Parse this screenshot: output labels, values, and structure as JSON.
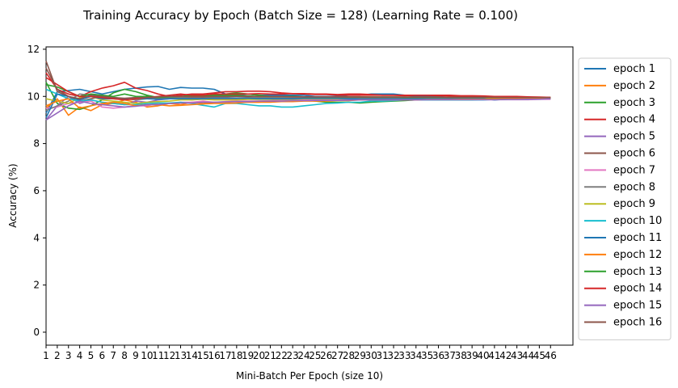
{
  "chart_data": {
    "type": "line",
    "title": "Training Accuracy by Epoch (Batch Size = 128) (Learning Rate = 0.100)",
    "xlabel": "Mini-Batch Per Epoch (size 10)",
    "ylabel": "Accuracy (%)",
    "xlim": [
      1,
      48
    ],
    "ylim": [
      -0.55,
      12.1
    ],
    "x_ticks": [
      1,
      2,
      3,
      4,
      5,
      6,
      7,
      8,
      9,
      10,
      11,
      12,
      13,
      14,
      15,
      16,
      17,
      18,
      19,
      20,
      21,
      22,
      23,
      24,
      25,
      26,
      27,
      28,
      29,
      30,
      31,
      32,
      33,
      34,
      35,
      36,
      37,
      38,
      39,
      40,
      41,
      42,
      43,
      44,
      45,
      46
    ],
    "y_ticks": [
      0,
      2,
      4,
      6,
      8,
      10,
      12
    ],
    "grid": false,
    "legend_position": "outside-right",
    "x": [
      1,
      2,
      3,
      4,
      5,
      6,
      7,
      8,
      9,
      10,
      11,
      12,
      13,
      14,
      15,
      16,
      17,
      18,
      19,
      20,
      21,
      22,
      23,
      24,
      25,
      26,
      27,
      28,
      29,
      30,
      31,
      32,
      33,
      34,
      35,
      36,
      37,
      38,
      39,
      40,
      41,
      42,
      43,
      44,
      45,
      46
    ],
    "series": [
      {
        "name": "epoch 1",
        "color": "#1f77b4",
        "values": [
          9.3,
          10.2,
          10.25,
          10.3,
          10.2,
          10.1,
          10.2,
          10.3,
          10.35,
          10.4,
          10.42,
          10.3,
          10.38,
          10.35,
          10.35,
          10.3,
          10.1,
          10.05,
          10.1,
          10.05,
          10.05,
          10.05,
          10.05,
          10.05,
          10.0,
          10.0,
          10.0,
          10.05,
          10.05,
          10.1,
          10.1,
          10.1,
          10.05,
          10.0,
          10.0,
          10.0,
          9.95,
          9.95,
          9.95,
          9.95,
          9.95,
          9.95,
          9.95,
          9.95,
          9.95,
          9.93
        ]
      },
      {
        "name": "epoch 2",
        "color": "#ff7f0e",
        "values": [
          9.5,
          9.9,
          9.2,
          9.55,
          9.4,
          9.65,
          9.7,
          9.85,
          9.75,
          9.55,
          9.6,
          9.7,
          9.65,
          9.75,
          9.7,
          9.75,
          9.75,
          9.78,
          9.75,
          9.75,
          9.8,
          9.8,
          9.8,
          9.85,
          9.85,
          9.85,
          9.85,
          9.85,
          9.88,
          9.88,
          9.9,
          9.9,
          9.9,
          9.9,
          9.9,
          9.9,
          9.9,
          9.9,
          9.9,
          9.9,
          9.9,
          9.92,
          9.92,
          9.92,
          9.92,
          9.92
        ]
      },
      {
        "name": "epoch 3",
        "color": "#2ca02c",
        "values": [
          10.6,
          9.7,
          9.5,
          9.45,
          9.6,
          9.85,
          10.15,
          10.3,
          10.2,
          10.05,
          9.95,
          9.95,
          10.0,
          10.05,
          10.05,
          10.05,
          10.1,
          10.15,
          10.1,
          10.05,
          10.0,
          9.95,
          9.9,
          9.85,
          9.8,
          9.75,
          9.75,
          9.75,
          9.72,
          9.75,
          9.78,
          9.8,
          9.82,
          9.85,
          9.85,
          9.85,
          9.85,
          9.85,
          9.85,
          9.88,
          9.88,
          9.9,
          9.9,
          9.9,
          9.9,
          9.92
        ]
      },
      {
        "name": "epoch 4",
        "color": "#d62728",
        "values": [
          11.0,
          10.3,
          10.1,
          10.0,
          10.2,
          10.35,
          10.45,
          10.6,
          10.35,
          10.25,
          10.1,
          10.0,
          10.05,
          10.1,
          10.1,
          10.15,
          10.2,
          10.2,
          10.22,
          10.22,
          10.2,
          10.15,
          10.12,
          10.12,
          10.1,
          10.1,
          10.08,
          10.1,
          10.1,
          10.08,
          10.05,
          10.05,
          10.03,
          10.05,
          10.05,
          10.03,
          10.02,
          10.0,
          10.0,
          10.0,
          9.98,
          9.98,
          9.97,
          9.96,
          9.96,
          9.95
        ]
      },
      {
        "name": "epoch 5",
        "color": "#9467bd",
        "values": [
          9.0,
          9.6,
          10.0,
          9.7,
          9.85,
          9.75,
          9.7,
          9.65,
          9.8,
          9.75,
          9.85,
          9.9,
          9.9,
          9.85,
          9.9,
          9.88,
          9.9,
          9.9,
          9.92,
          9.92,
          9.9,
          9.9,
          9.92,
          9.92,
          9.92,
          9.93,
          9.93,
          9.93,
          9.93,
          9.93,
          9.93,
          9.93,
          9.93,
          9.93,
          9.93,
          9.93,
          9.93,
          9.93,
          9.93,
          9.93,
          9.93,
          9.93,
          9.93,
          9.93,
          9.93,
          9.93
        ]
      },
      {
        "name": "epoch 6",
        "color": "#8c564b",
        "values": [
          11.5,
          10.2,
          10.0,
          9.8,
          9.9,
          10.0,
          9.95,
          9.9,
          9.95,
          9.9,
          9.95,
          10.0,
          10.0,
          9.95,
          9.95,
          9.98,
          10.0,
          10.0,
          10.0,
          10.0,
          10.0,
          10.0,
          10.0,
          9.98,
          9.98,
          9.98,
          9.98,
          9.98,
          9.98,
          9.97,
          9.97,
          9.97,
          9.97,
          9.97,
          9.97,
          9.96,
          9.96,
          9.96,
          9.96,
          9.96,
          9.95,
          9.95,
          9.95,
          9.95,
          9.95,
          9.95
        ]
      },
      {
        "name": "epoch 7",
        "color": "#e377c2",
        "values": [
          9.5,
          9.55,
          9.7,
          9.75,
          9.8,
          9.55,
          9.5,
          9.55,
          9.6,
          9.6,
          9.7,
          9.7,
          9.75,
          9.75,
          9.8,
          9.75,
          9.78,
          9.8,
          9.8,
          9.8,
          9.82,
          9.85,
          9.85,
          9.85,
          9.85,
          9.85,
          9.85,
          9.85,
          9.85,
          9.85,
          9.85,
          9.85,
          9.85,
          9.85,
          9.85,
          9.86,
          9.86,
          9.86,
          9.86,
          9.86,
          9.86,
          9.86,
          9.86,
          9.86,
          9.88,
          9.88
        ]
      },
      {
        "name": "epoch 8",
        "color": "#7f7f7f",
        "values": [
          9.4,
          9.6,
          9.8,
          10.1,
          10.05,
          10.0,
          9.95,
          9.9,
          9.85,
          9.9,
          9.9,
          9.95,
          9.95,
          9.95,
          9.92,
          9.95,
          9.95,
          9.92,
          9.95,
          9.95,
          9.95,
          9.95,
          9.95,
          9.95,
          9.95,
          9.95,
          9.95,
          9.95,
          9.95,
          9.95,
          9.95,
          9.95,
          9.95,
          9.95,
          9.95,
          9.95,
          9.95,
          9.95,
          9.95,
          9.95,
          9.95,
          9.95,
          9.95,
          9.95,
          9.95,
          9.95
        ]
      },
      {
        "name": "epoch 9",
        "color": "#bcbd22",
        "values": [
          9.9,
          9.8,
          9.7,
          9.95,
          10.0,
          9.85,
          9.8,
          9.75,
          9.7,
          9.75,
          9.78,
          9.8,
          9.85,
          9.85,
          9.88,
          9.85,
          9.85,
          9.85,
          9.87,
          9.87,
          9.87,
          9.88,
          9.88,
          9.9,
          9.9,
          9.9,
          9.9,
          9.9,
          9.9,
          9.9,
          9.9,
          9.9,
          9.9,
          9.9,
          9.9,
          9.9,
          9.9,
          9.9,
          9.9,
          9.9,
          9.9,
          9.9,
          9.9,
          9.92,
          9.92,
          9.92
        ]
      },
      {
        "name": "epoch 10",
        "color": "#17becf",
        "values": [
          10.3,
          10.1,
          9.9,
          9.8,
          9.85,
          9.75,
          9.7,
          9.65,
          9.65,
          9.7,
          9.72,
          9.72,
          9.75,
          9.7,
          9.62,
          9.55,
          9.7,
          9.7,
          9.65,
          9.6,
          9.6,
          9.55,
          9.55,
          9.6,
          9.65,
          9.7,
          9.72,
          9.75,
          9.75,
          9.8,
          9.8,
          9.82,
          9.85,
          9.85,
          9.85,
          9.85,
          9.85,
          9.85,
          9.85,
          9.85,
          9.87,
          9.87,
          9.88,
          9.88,
          9.9,
          9.9
        ]
      },
      {
        "name": "epoch 11",
        "color": "#1f77b4",
        "values": [
          9.1,
          10.1,
          10.0,
          9.85,
          10.0,
          9.9,
          9.9,
          9.88,
          9.92,
          9.9,
          9.88,
          9.9,
          9.9,
          9.9,
          9.9,
          9.92,
          9.92,
          9.92,
          9.92,
          9.9,
          9.9,
          9.9,
          9.9,
          9.92,
          9.92,
          9.92,
          9.92,
          9.9,
          9.9,
          9.9,
          9.9,
          9.9,
          9.9,
          9.9,
          9.9,
          9.9,
          9.9,
          9.9,
          9.9,
          9.9,
          9.85,
          9.88,
          9.9,
          9.9,
          9.9,
          9.9
        ]
      },
      {
        "name": "epoch 12",
        "color": "#ff7f0e",
        "values": [
          9.6,
          9.8,
          9.9,
          9.5,
          9.6,
          9.7,
          9.75,
          9.7,
          9.6,
          9.65,
          9.65,
          9.6,
          9.62,
          9.65,
          9.68,
          9.7,
          9.7,
          9.72,
          9.75,
          9.75,
          9.75,
          9.78,
          9.78,
          9.8,
          9.8,
          9.8,
          9.82,
          9.82,
          9.85,
          9.85,
          9.85,
          9.85,
          9.85,
          9.85,
          9.87,
          9.87,
          9.87,
          9.88,
          9.88,
          9.88,
          9.9,
          9.9,
          9.9,
          9.9,
          9.9,
          9.9
        ]
      },
      {
        "name": "epoch 13",
        "color": "#2ca02c",
        "values": [
          10.5,
          10.4,
          10.2,
          10.0,
          10.1,
          10.05,
          10.0,
          10.1,
          10.0,
          10.0,
          9.95,
          9.98,
          10.0,
          10.0,
          10.0,
          10.02,
          10.05,
          10.05,
          10.02,
          10.0,
          10.0,
          10.0,
          10.0,
          9.98,
          9.98,
          9.98,
          9.98,
          9.97,
          9.97,
          9.97,
          9.97,
          9.97,
          9.96,
          9.96,
          9.96,
          9.96,
          9.96,
          9.95,
          9.95,
          9.95,
          9.95,
          9.95,
          9.95,
          9.95,
          9.95,
          9.95
        ]
      },
      {
        "name": "epoch 14",
        "color": "#d62728",
        "values": [
          10.8,
          10.5,
          10.2,
          10.0,
          10.0,
          9.95,
          9.9,
          9.85,
          9.9,
          9.95,
          10.0,
          10.05,
          10.1,
          10.05,
          10.05,
          10.1,
          10.1,
          10.1,
          10.1,
          10.12,
          10.1,
          10.1,
          10.12,
          10.1,
          10.08,
          10.08,
          10.05,
          10.05,
          10.05,
          10.05,
          10.05,
          10.05,
          10.05,
          10.05,
          10.05,
          10.05,
          10.05,
          10.03,
          10.03,
          10.02,
          10.0,
          10.0,
          10.0,
          9.98,
          9.97,
          9.96
        ]
      },
      {
        "name": "epoch 15",
        "color": "#9467bd",
        "values": [
          9.0,
          9.3,
          9.6,
          9.8,
          9.7,
          9.65,
          9.6,
          9.55,
          9.58,
          9.65,
          9.65,
          9.7,
          9.72,
          9.72,
          9.75,
          9.75,
          9.77,
          9.78,
          9.78,
          9.8,
          9.8,
          9.8,
          9.82,
          9.82,
          9.83,
          9.83,
          9.83,
          9.84,
          9.85,
          9.85,
          9.85,
          9.85,
          9.85,
          9.85,
          9.86,
          9.86,
          9.86,
          9.86,
          9.86,
          9.86,
          9.86,
          9.87,
          9.87,
          9.88,
          9.88,
          9.9
        ]
      },
      {
        "name": "epoch 16",
        "color": "#8c564b",
        "values": [
          11.2,
          10.3,
          10.0,
          9.9,
          10.05,
          10.0,
          9.95,
          9.92,
          9.95,
          9.95,
          9.98,
          10.0,
          10.0,
          9.98,
          9.98,
          10.0,
          10.0,
          10.0,
          10.0,
          10.0,
          10.0,
          10.0,
          9.98,
          9.98,
          9.98,
          9.98,
          9.98,
          9.97,
          9.97,
          9.97,
          9.97,
          9.97,
          9.97,
          9.97,
          9.97,
          9.97,
          9.96,
          9.96,
          9.96,
          9.96,
          9.96,
          9.95,
          9.95,
          9.95,
          9.95,
          9.95
        ]
      }
    ]
  }
}
